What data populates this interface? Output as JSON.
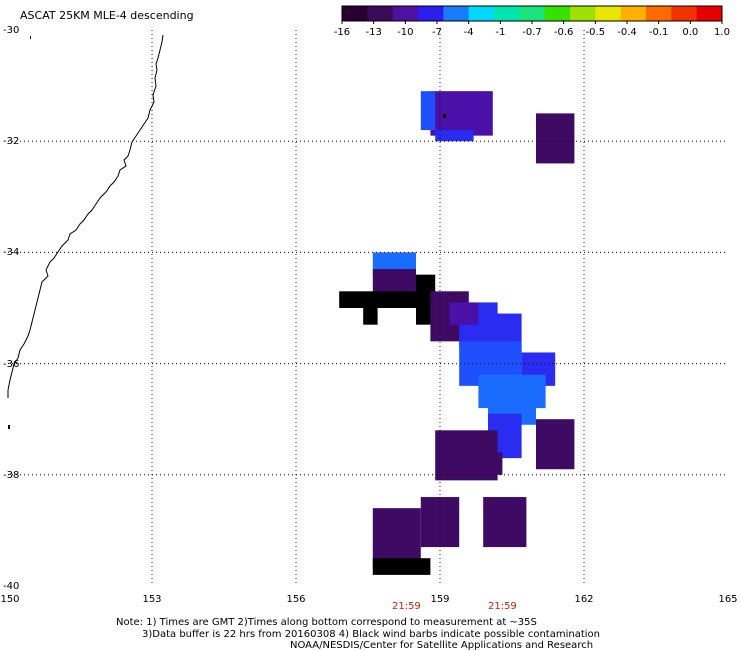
{
  "title": "ASCAT 25KM MLE-4 descending",
  "colorbar": {
    "colors": [
      "#2a0030",
      "#3c0a5a",
      "#4f11a0",
      "#2a1ff0",
      "#1a7bff",
      "#00d8ff",
      "#00e6b0",
      "#19e57a",
      "#38e000",
      "#9ee000",
      "#e6e600",
      "#ffb000",
      "#ff6a00",
      "#f23200",
      "#e60000"
    ],
    "ticks": [
      "-16",
      "-13",
      "-10",
      "-7",
      "-4",
      "-1",
      "-0.7",
      "-0.6",
      "-0.5",
      "-0.4",
      "-0.1",
      "0.0",
      "1.0"
    ]
  },
  "axes": {
    "lon_ticks": [
      "150",
      "153",
      "156",
      "159",
      "162",
      "165"
    ],
    "lat_ticks": [
      "-30",
      "-32",
      "-34",
      "-36",
      "-38",
      "-40"
    ],
    "lon_range": [
      150,
      165
    ],
    "lat_range": [
      -30,
      -40
    ],
    "grid": "dotted"
  },
  "times": [
    {
      "label": "21:59",
      "lon": 158.3
    },
    {
      "label": "21:59",
      "lon": 160.3
    }
  ],
  "notes": [
    "Note: 1) Times are GMT 2)Times along bottom correspond to measurement at ~35S",
    "3)Data buffer is 22 hrs from 20160308 4) Black wind barbs indicate possible contamination",
    "NOAA/NESDIS/Center for Satellite Applications and Research"
  ],
  "data_cells": [
    {
      "lon": [
        158.8,
        160.1
      ],
      "lat": [
        -31.1,
        -31.9
      ],
      "value": -10
    },
    {
      "lon": [
        158.6,
        158.9
      ],
      "lat": [
        -31.1,
        -31.8
      ],
      "value": -6
    },
    {
      "lon": [
        158.9,
        159.7
      ],
      "lat": [
        -31.8,
        -32.0
      ],
      "value": -8
    },
    {
      "lon": [
        161.0,
        161.8
      ],
      "lat": [
        -31.5,
        -32.4
      ],
      "value": -12
    },
    {
      "lon": [
        157.6,
        158.5
      ],
      "lat": [
        -34.0,
        -34.4
      ],
      "value": -5
    },
    {
      "lon": [
        157.6,
        158.5
      ],
      "lat": [
        -34.3,
        -34.8
      ],
      "value": -11
    },
    {
      "lon": [
        156.9,
        158.8
      ],
      "lat": [
        -34.7,
        -35.0
      ],
      "value": -16
    },
    {
      "lon": [
        157.4,
        157.7
      ],
      "lat": [
        -35.0,
        -35.3
      ],
      "value": -16
    },
    {
      "lon": [
        158.5,
        158.9
      ],
      "lat": [
        -34.4,
        -35.3
      ],
      "value": -16
    },
    {
      "lon": [
        158.8,
        159.6
      ],
      "lat": [
        -34.7,
        -35.6
      ],
      "value": -11
    },
    {
      "lon": [
        159.4,
        160.2
      ],
      "lat": [
        -34.9,
        -35.7
      ],
      "value": -8
    },
    {
      "lon": [
        160.1,
        160.7
      ],
      "lat": [
        -35.1,
        -35.8
      ],
      "value": -7
    },
    {
      "lon": [
        159.4,
        160.7
      ],
      "lat": [
        -35.6,
        -36.4
      ],
      "value": -6
    },
    {
      "lon": [
        160.7,
        161.4
      ],
      "lat": [
        -35.8,
        -36.4
      ],
      "value": -8
    },
    {
      "lon": [
        159.8,
        161.2
      ],
      "lat": [
        -36.2,
        -36.8
      ],
      "value": -5
    },
    {
      "lon": [
        160.0,
        161.0
      ],
      "lat": [
        -36.7,
        -37.1
      ],
      "value": -5
    },
    {
      "lon": [
        160.0,
        160.7
      ],
      "lat": [
        -36.9,
        -37.7
      ],
      "value": -8
    },
    {
      "lon": [
        159.2,
        159.8
      ],
      "lat": [
        -34.9,
        -35.3
      ],
      "value": -10
    },
    {
      "lon": [
        158.9,
        160.2
      ],
      "lat": [
        -37.2,
        -38.1
      ],
      "value": -12
    },
    {
      "lon": [
        160.0,
        160.3
      ],
      "lat": [
        -37.6,
        -38.0
      ],
      "value": -12
    },
    {
      "lon": [
        161.0,
        161.8
      ],
      "lat": [
        -37.0,
        -37.9
      ],
      "value": -11
    },
    {
      "lon": [
        158.6,
        159.4
      ],
      "lat": [
        -38.4,
        -39.3
      ],
      "value": -11
    },
    {
      "lon": [
        159.9,
        160.8
      ],
      "lat": [
        -38.4,
        -39.3
      ],
      "value": -12
    },
    {
      "lon": [
        157.6,
        158.6
      ],
      "lat": [
        -38.6,
        -39.7
      ],
      "value": -12
    },
    {
      "lon": [
        157.6,
        158.8
      ],
      "lat": [
        -39.5,
        -39.8
      ],
      "value": -16
    }
  ]
}
